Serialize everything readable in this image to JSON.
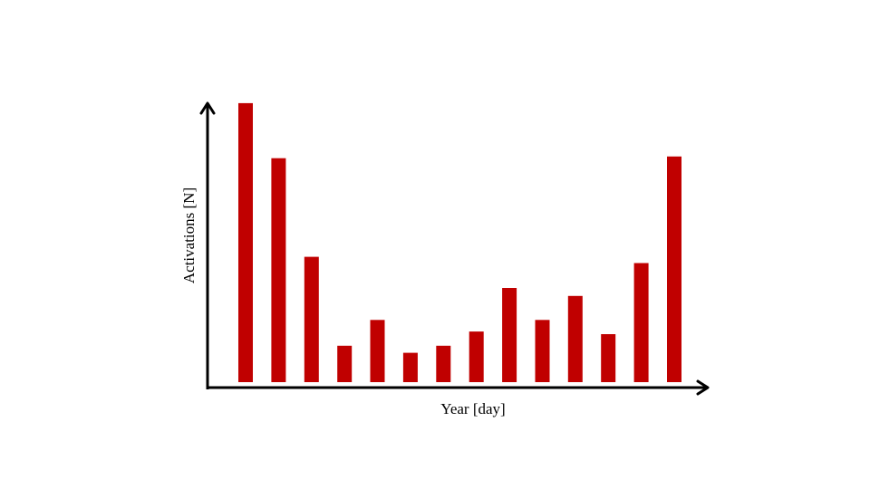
{
  "chart_data": {
    "type": "bar",
    "xlabel": "Year [day]",
    "ylabel": "Activations [N]",
    "categories": [
      "",
      "",
      "",
      "",
      "",
      "",
      "",
      "",
      "",
      "",
      "",
      "",
      "",
      ""
    ],
    "values": [
      314,
      252,
      141,
      41,
      70,
      33,
      41,
      57,
      106,
      70,
      97,
      54,
      134,
      254
    ],
    "ylim": [
      0,
      320
    ],
    "grid": false,
    "legend": "none",
    "x_ticks_shown": false,
    "y_ticks_shown": false,
    "bar_color": "#c00000",
    "axis_color": "#000000"
  }
}
